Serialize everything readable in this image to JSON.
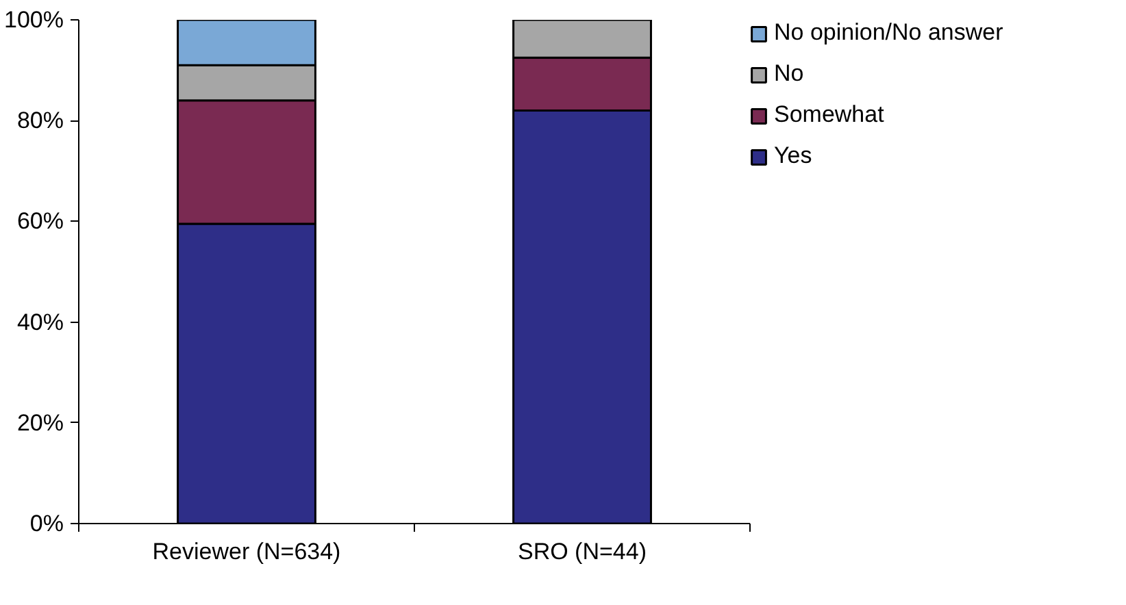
{
  "chart_data": {
    "type": "bar",
    "stacked": true,
    "categories": [
      "Reviewer (N=634)",
      "SRO (N=44)"
    ],
    "series": [
      {
        "name": "Yes",
        "color": "#2e2e88",
        "values": [
          59.5,
          82
        ]
      },
      {
        "name": "Somewhat",
        "color": "#7a2a52",
        "values": [
          24.5,
          10.5
        ]
      },
      {
        "name": "No",
        "color": "#a6a6a6",
        "values": [
          7,
          7.5
        ]
      },
      {
        "name": "No opinion/No answer",
        "color": "#7aa8d6",
        "values": [
          9,
          0
        ]
      }
    ],
    "ylim": [
      0,
      100
    ],
    "yticks": [
      {
        "value": 0,
        "label": "0%"
      },
      {
        "value": 20,
        "label": "20%"
      },
      {
        "value": 40,
        "label": "40%"
      },
      {
        "value": 60,
        "label": "60%"
      },
      {
        "value": 80,
        "label": "80%"
      },
      {
        "value": 100,
        "label": "100%"
      }
    ],
    "grid": false,
    "legend": "right"
  }
}
